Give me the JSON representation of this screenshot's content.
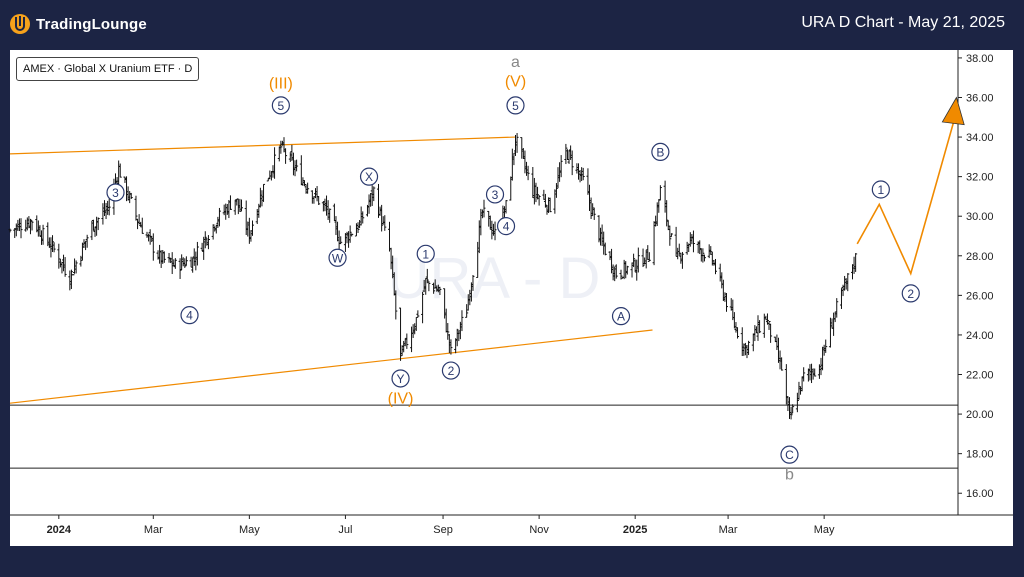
{
  "header": {
    "logo_text": "TradingLounge",
    "title": "URA D Chart - May 21, 2025"
  },
  "legend": {
    "symbol_label": "AMEX · Global X Uranium ETF · D"
  },
  "watermark": "URA - D",
  "colors": {
    "background": "#1c2444",
    "accent": "#f08a00",
    "wave_circle": "#2b3a6e",
    "gray_label": "#888888"
  },
  "chart_data": {
    "type": "candlestick",
    "title": "URA D Chart - May 21, 2025",
    "x_tick_labels": [
      "2024",
      "Mar",
      "May",
      "Jul",
      "Sep",
      "Nov",
      "2025",
      "Mar",
      "May"
    ],
    "y_tick_labels": [
      "38.00",
      "36.00",
      "34.00",
      "32.00",
      "30.00",
      "28.00",
      "26.00",
      "24.00",
      "22.00",
      "20.00",
      "18.00",
      "16.00"
    ],
    "ylim": [
      14.9,
      38.4
    ],
    "xlim": [
      "2023-12-01",
      "2025-07-25"
    ],
    "price_path": [
      [
        "2023-12-01",
        29.3
      ],
      [
        "2023-12-15",
        29.8
      ],
      [
        "2023-12-29",
        28.3
      ],
      [
        "2024-01-08",
        26.9
      ],
      [
        "2024-01-22",
        29.5
      ],
      [
        "2024-02-02",
        30.5
      ],
      [
        "2024-02-08",
        32.4
      ],
      [
        "2024-02-20",
        29.8
      ],
      [
        "2024-03-05",
        27.9
      ],
      [
        "2024-03-15",
        27.5
      ],
      [
        "2024-03-26",
        27.8
      ],
      [
        "2024-04-10",
        29.8
      ],
      [
        "2024-04-22",
        30.9
      ],
      [
        "2024-05-01",
        29.1
      ],
      [
        "2024-05-10",
        31.5
      ],
      [
        "2024-05-21",
        33.5
      ],
      [
        "2024-06-05",
        31.7
      ],
      [
        "2024-06-20",
        30.2
      ],
      [
        "2024-06-28",
        28.7
      ],
      [
        "2024-07-10",
        29.6
      ],
      [
        "2024-07-19",
        31.3
      ],
      [
        "2024-07-29",
        28.3
      ],
      [
        "2024-08-05",
        22.9
      ],
      [
        "2024-08-15",
        24.8
      ],
      [
        "2024-08-21",
        26.7
      ],
      [
        "2024-08-30",
        26.2
      ],
      [
        "2024-09-06",
        23.1
      ],
      [
        "2024-09-16",
        25.3
      ],
      [
        "2024-09-26",
        30.2
      ],
      [
        "2024-10-04",
        29.1
      ],
      [
        "2024-10-11",
        30.5
      ],
      [
        "2024-10-17",
        33.9
      ],
      [
        "2024-10-28",
        31.3
      ],
      [
        "2024-11-08",
        30.5
      ],
      [
        "2024-11-18",
        33.3
      ],
      [
        "2024-11-29",
        31.8
      ],
      [
        "2024-12-10",
        28.8
      ],
      [
        "2024-12-20",
        27.1
      ],
      [
        "2025-01-02",
        27.6
      ],
      [
        "2025-01-10",
        28.1
      ],
      [
        "2025-01-17",
        31.3
      ],
      [
        "2025-01-27",
        27.8
      ],
      [
        "2025-02-05",
        28.8
      ],
      [
        "2025-02-19",
        27.8
      ],
      [
        "2025-03-05",
        24.5
      ],
      [
        "2025-03-12",
        23.3
      ],
      [
        "2025-03-25",
        24.9
      ],
      [
        "2025-04-04",
        22.3
      ],
      [
        "2025-04-09",
        19.7
      ],
      [
        "2025-04-18",
        21.9
      ],
      [
        "2025-04-28",
        22.4
      ],
      [
        "2025-05-07",
        24.9
      ],
      [
        "2025-05-14",
        26.4
      ],
      [
        "2025-05-21",
        27.9
      ]
    ],
    "trendlines": [
      {
        "from": [
          "2023-12-01",
          33.15
        ],
        "to": [
          "2024-10-17",
          34.0
        ]
      },
      {
        "from": [
          "2023-12-01",
          20.55
        ],
        "to": [
          "2025-01-12",
          24.25
        ]
      }
    ],
    "horizontal_lines": [
      20.45,
      17.27
    ],
    "projection": [
      [
        "2025-05-22",
        28.6
      ],
      [
        "2025-06-05",
        30.6
      ],
      [
        "2025-06-25",
        27.1
      ],
      [
        "2025-07-22",
        34.7
      ]
    ],
    "projection_arrow_tip": [
      "2025-07-24",
      36.0
    ],
    "wave_labels": [
      {
        "text": "3",
        "style": "circle",
        "x": "2024-02-06",
        "y": 31.2
      },
      {
        "text": "4",
        "style": "circle",
        "x": "2024-03-24",
        "y": 25.0
      },
      {
        "text": "5",
        "style": "circle",
        "x": "2024-05-21",
        "y": 35.6
      },
      {
        "text": "(III)",
        "style": "orange",
        "x": "2024-05-21",
        "y": 36.7
      },
      {
        "text": "X",
        "style": "circle",
        "x": "2024-07-16",
        "y": 32.0
      },
      {
        "text": "W",
        "style": "circle",
        "x": "2024-06-26",
        "y": 27.9
      },
      {
        "text": "1",
        "style": "circle",
        "x": "2024-08-21",
        "y": 28.1
      },
      {
        "text": "Y",
        "style": "circle",
        "x": "2024-08-05",
        "y": 21.8
      },
      {
        "text": "(IV)",
        "style": "orange",
        "x": "2024-08-05",
        "y": 20.8
      },
      {
        "text": "2",
        "style": "circle",
        "x": "2024-09-06",
        "y": 22.2
      },
      {
        "text": "3",
        "style": "circle",
        "x": "2024-10-04",
        "y": 31.1
      },
      {
        "text": "4",
        "style": "circle",
        "x": "2024-10-11",
        "y": 29.5
      },
      {
        "text": "5",
        "style": "circle",
        "x": "2024-10-17",
        "y": 35.6
      },
      {
        "text": "(V)",
        "style": "orange",
        "x": "2024-10-17",
        "y": 36.8
      },
      {
        "text": "a",
        "style": "gray",
        "x": "2024-10-17",
        "y": 37.8
      },
      {
        "text": "B",
        "style": "circle",
        "x": "2025-01-17",
        "y": 33.25
      },
      {
        "text": "A",
        "style": "circle",
        "x": "2024-12-23",
        "y": 24.95
      },
      {
        "text": "C",
        "style": "circle",
        "x": "2025-04-09",
        "y": 17.95
      },
      {
        "text": "b",
        "style": "gray",
        "x": "2025-04-09",
        "y": 16.95
      },
      {
        "text": "1",
        "style": "circle",
        "x": "2025-06-06",
        "y": 31.35
      },
      {
        "text": "2",
        "style": "circle",
        "x": "2025-06-25",
        "y": 26.1
      }
    ]
  }
}
